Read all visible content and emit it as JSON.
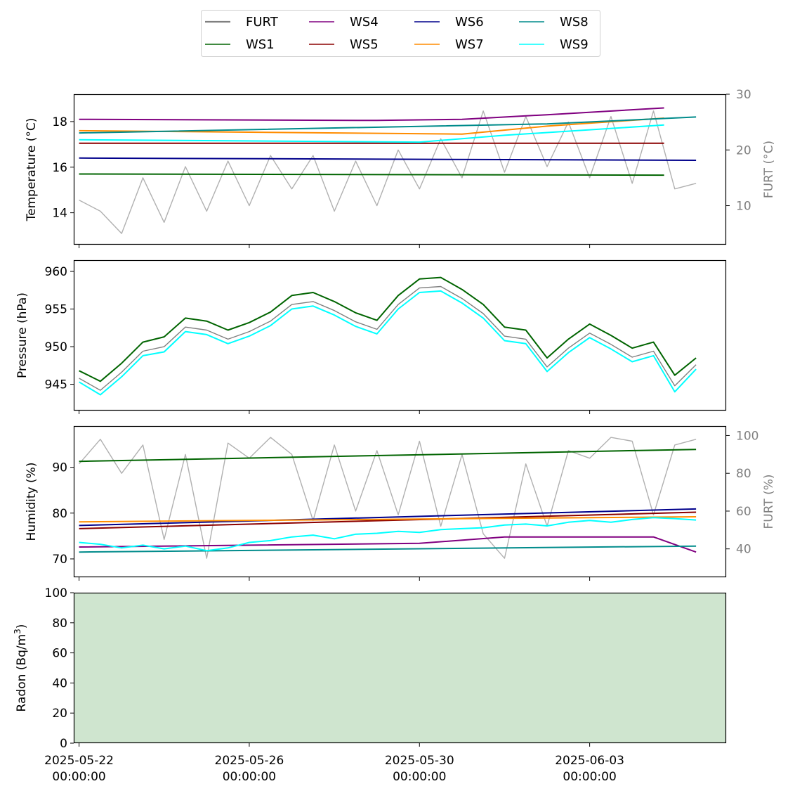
{
  "legend": {
    "entries": [
      {
        "name": "FURT",
        "color": "#808080"
      },
      {
        "name": "WS1",
        "color": "#006400"
      },
      {
        "name": "WS4",
        "color": "#800080"
      },
      {
        "name": "WS5",
        "color": "#8b0000"
      },
      {
        "name": "WS6",
        "color": "#00008b"
      },
      {
        "name": "WS7",
        "color": "#ff8c00"
      },
      {
        "name": "WS8",
        "color": "#008b8b"
      },
      {
        "name": "WS9",
        "color": "#00ffff"
      }
    ]
  },
  "x_axis": {
    "ticks": [
      {
        "date": "2025-05-22",
        "line1": "2025-05-22",
        "line2": "00:00:00"
      },
      {
        "date": "2025-05-26",
        "line1": "2025-05-26",
        "line2": "00:00:00"
      },
      {
        "date": "2025-05-30",
        "line1": "2025-05-30",
        "line2": "00:00:00"
      },
      {
        "date": "2025-06-03",
        "line1": "2025-06-03",
        "line2": "00:00:00"
      }
    ],
    "range": [
      "2025-05-21T21:00",
      "2025-06-06T05:00"
    ]
  },
  "chart_data": [
    {
      "type": "line",
      "ylabel": "Temperature (°C)",
      "ylim": [
        12.6,
        19.2
      ],
      "yticks": [
        14,
        16,
        18
      ],
      "secondary_axis": {
        "ylabel": "FURT (°C)",
        "ylim": [
          3,
          30
        ],
        "yticks": [
          10,
          20,
          30
        ]
      },
      "series": [
        {
          "name": "FURT",
          "axis": "right",
          "color": "#b0b0b0",
          "x": [
            "2025-05-22T00:00",
            "2025-05-22T12:00",
            "2025-05-23T00:00",
            "2025-05-23T12:00",
            "2025-05-24T00:00",
            "2025-05-24T12:00",
            "2025-05-25T00:00",
            "2025-05-25T12:00",
            "2025-05-26T00:00",
            "2025-05-26T12:00",
            "2025-05-27T00:00",
            "2025-05-27T12:00",
            "2025-05-28T00:00",
            "2025-05-28T12:00",
            "2025-05-29T00:00",
            "2025-05-29T12:00",
            "2025-05-30T00:00",
            "2025-05-30T12:00",
            "2025-05-31T00:00",
            "2025-05-31T12:00",
            "2025-06-01T00:00",
            "2025-06-01T12:00",
            "2025-06-02T00:00",
            "2025-06-02T12:00",
            "2025-06-03T00:00",
            "2025-06-03T12:00",
            "2025-06-04T00:00",
            "2025-06-04T12:00",
            "2025-06-05T00:00",
            "2025-06-05T12:00"
          ],
          "values": [
            11,
            9,
            5,
            15,
            7,
            17,
            9,
            18,
            10,
            19,
            13,
            19,
            9,
            18,
            10,
            20,
            13,
            22,
            15,
            27,
            16,
            26,
            17,
            25,
            15,
            26,
            14,
            27,
            13,
            14
          ]
        },
        {
          "name": "WS1",
          "axis": "left",
          "color": "#006400",
          "x": [
            "2025-05-22T00:00",
            "2025-06-04T18:00"
          ],
          "values": [
            15.7,
            15.65
          ]
        },
        {
          "name": "WS4",
          "axis": "left",
          "color": "#800080",
          "x": [
            "2025-05-22T00:00",
            "2025-05-29T00:00",
            "2025-05-31T00:00",
            "2025-06-02T00:00",
            "2025-06-04T18:00"
          ],
          "values": [
            18.1,
            18.05,
            18.1,
            18.3,
            18.6
          ]
        },
        {
          "name": "WS5",
          "axis": "left",
          "color": "#8b0000",
          "x": [
            "2025-05-22T00:00",
            "2025-06-04T18:00"
          ],
          "values": [
            17.05,
            17.05
          ]
        },
        {
          "name": "WS6",
          "axis": "left",
          "color": "#00008b",
          "x": [
            "2025-05-22T00:00",
            "2025-06-05T12:00"
          ],
          "values": [
            16.4,
            16.3
          ]
        },
        {
          "name": "WS7",
          "axis": "left",
          "color": "#ff8c00",
          "x": [
            "2025-05-22T00:00",
            "2025-05-31T00:00",
            "2025-06-02T00:00",
            "2025-06-04T18:00"
          ],
          "values": [
            17.6,
            17.45,
            17.8,
            18.15
          ]
        },
        {
          "name": "WS8",
          "axis": "left",
          "color": "#008b8b",
          "x": [
            "2025-05-22T00:00",
            "2025-06-02T00:00",
            "2025-06-05T12:00"
          ],
          "values": [
            17.5,
            17.9,
            18.2
          ]
        },
        {
          "name": "WS9",
          "axis": "left",
          "color": "#00ffff",
          "x": [
            "2025-05-22T00:00",
            "2025-05-30T00:00",
            "2025-06-01T00:00",
            "2025-06-04T18:00"
          ],
          "values": [
            17.2,
            17.1,
            17.4,
            17.85
          ]
        }
      ]
    },
    {
      "type": "line",
      "ylabel": "Pressure (hPa)",
      "ylim": [
        941.5,
        961.5
      ],
      "yticks": [
        945,
        950,
        955,
        960
      ],
      "series": [
        {
          "name": "WS1",
          "color": "#006400",
          "x": [
            "2025-05-22T00:00",
            "2025-05-22T12:00",
            "2025-05-23T00:00",
            "2025-05-23T12:00",
            "2025-05-24T00:00",
            "2025-05-24T12:00",
            "2025-05-25T00:00",
            "2025-05-25T12:00",
            "2025-05-26T00:00",
            "2025-05-26T12:00",
            "2025-05-27T00:00",
            "2025-05-27T12:00",
            "2025-05-28T00:00",
            "2025-05-28T12:00",
            "2025-05-29T00:00",
            "2025-05-29T12:00",
            "2025-05-30T00:00",
            "2025-05-30T12:00",
            "2025-05-31T00:00",
            "2025-05-31T12:00",
            "2025-06-01T00:00",
            "2025-06-01T12:00",
            "2025-06-02T00:00",
            "2025-06-02T12:00",
            "2025-06-03T00:00",
            "2025-06-03T12:00",
            "2025-06-04T00:00",
            "2025-06-04T12:00",
            "2025-06-05T00:00",
            "2025-06-05T12:00"
          ],
          "values": [
            946.8,
            945.4,
            947.8,
            950.6,
            951.3,
            953.8,
            953.4,
            952.2,
            953.2,
            954.6,
            956.8,
            957.2,
            956.0,
            954.5,
            953.5,
            956.8,
            959.0,
            959.2,
            957.6,
            955.6,
            952.6,
            952.2,
            948.5,
            951.0,
            953.0,
            951.5,
            949.8,
            950.6,
            946.2,
            948.5
          ]
        },
        {
          "name": "FURT",
          "color": "#808080",
          "x": [
            "2025-05-22T00:00",
            "2025-05-22T12:00",
            "2025-05-23T00:00",
            "2025-05-23T12:00",
            "2025-05-24T00:00",
            "2025-05-24T12:00",
            "2025-05-25T00:00",
            "2025-05-25T12:00",
            "2025-05-26T00:00",
            "2025-05-26T12:00",
            "2025-05-27T00:00",
            "2025-05-27T12:00",
            "2025-05-28T00:00",
            "2025-05-28T12:00",
            "2025-05-29T00:00",
            "2025-05-29T12:00",
            "2025-05-30T00:00",
            "2025-05-30T12:00",
            "2025-05-31T00:00",
            "2025-05-31T12:00",
            "2025-06-01T00:00",
            "2025-06-01T12:00",
            "2025-06-02T00:00",
            "2025-06-02T12:00",
            "2025-06-03T00:00",
            "2025-06-03T12:00",
            "2025-06-04T00:00",
            "2025-06-04T12:00",
            "2025-06-05T00:00",
            "2025-06-05T12:00"
          ],
          "values": [
            945.8,
            944.2,
            946.6,
            949.4,
            950.0,
            952.6,
            952.2,
            951.0,
            952.0,
            953.4,
            955.6,
            956.0,
            954.8,
            953.3,
            952.3,
            955.6,
            957.8,
            958.0,
            956.4,
            954.4,
            951.4,
            951.0,
            947.3,
            949.8,
            951.8,
            950.3,
            948.6,
            949.4,
            944.8,
            947.6
          ]
        },
        {
          "name": "WS9",
          "color": "#00ffff",
          "x": [
            "2025-05-22T00:00",
            "2025-05-22T12:00",
            "2025-05-23T00:00",
            "2025-05-23T12:00",
            "2025-05-24T00:00",
            "2025-05-24T12:00",
            "2025-05-25T00:00",
            "2025-05-25T12:00",
            "2025-05-26T00:00",
            "2025-05-26T12:00",
            "2025-05-27T00:00",
            "2025-05-27T12:00",
            "2025-05-28T00:00",
            "2025-05-28T12:00",
            "2025-05-29T00:00",
            "2025-05-29T12:00",
            "2025-05-30T00:00",
            "2025-05-30T12:00",
            "2025-05-31T00:00",
            "2025-05-31T12:00",
            "2025-06-01T00:00",
            "2025-06-01T12:00",
            "2025-06-02T00:00",
            "2025-06-02T12:00",
            "2025-06-03T00:00",
            "2025-06-03T12:00",
            "2025-06-04T00:00",
            "2025-06-04T12:00",
            "2025-06-05T00:00",
            "2025-06-05T12:00"
          ],
          "values": [
            945.3,
            943.6,
            946.0,
            948.8,
            949.3,
            952.0,
            951.6,
            950.4,
            951.4,
            952.8,
            955.0,
            955.4,
            954.2,
            952.7,
            951.7,
            955.0,
            957.2,
            957.4,
            955.8,
            953.8,
            950.8,
            950.4,
            946.7,
            949.2,
            951.2,
            949.7,
            948.0,
            948.8,
            944.0,
            947.0
          ]
        }
      ]
    },
    {
      "type": "line",
      "ylabel": "Humidity (%)",
      "ylim": [
        66,
        99
      ],
      "yticks": [
        70,
        80,
        90
      ],
      "secondary_axis": {
        "ylabel": "FURT (%)",
        "ylim": [
          25,
          105
        ],
        "yticks": [
          40,
          60,
          80,
          100
        ]
      },
      "series": [
        {
          "name": "FURT",
          "axis": "right",
          "color": "#b0b0b0",
          "x": [
            "2025-05-22T00:00",
            "2025-05-22T12:00",
            "2025-05-23T00:00",
            "2025-05-23T12:00",
            "2025-05-24T00:00",
            "2025-05-24T12:00",
            "2025-05-25T00:00",
            "2025-05-25T12:00",
            "2025-05-26T00:00",
            "2025-05-26T12:00",
            "2025-05-27T00:00",
            "2025-05-27T12:00",
            "2025-05-28T00:00",
            "2025-05-28T12:00",
            "2025-05-29T00:00",
            "2025-05-29T12:00",
            "2025-05-30T00:00",
            "2025-05-30T12:00",
            "2025-05-31T00:00",
            "2025-05-31T12:00",
            "2025-06-01T00:00",
            "2025-06-01T12:00",
            "2025-06-02T00:00",
            "2025-06-02T12:00",
            "2025-06-03T00:00",
            "2025-06-03T12:00",
            "2025-06-04T00:00",
            "2025-06-04T12:00",
            "2025-06-05T00:00",
            "2025-06-05T12:00"
          ],
          "values": [
            85,
            98,
            80,
            95,
            45,
            90,
            35,
            96,
            88,
            99,
            90,
            55,
            95,
            60,
            92,
            58,
            97,
            52,
            90,
            48,
            35,
            85,
            52,
            92,
            88,
            99,
            97,
            58,
            95,
            98
          ]
        },
        {
          "name": "WS1",
          "axis": "left",
          "color": "#006400",
          "x": [
            "2025-05-22T00:00",
            "2025-06-05T12:00"
          ],
          "values": [
            91.3,
            93.9
          ]
        },
        {
          "name": "WS4",
          "axis": "left",
          "color": "#800080",
          "x": [
            "2025-05-22T00:00",
            "2025-05-30T00:00",
            "2025-06-01T00:00",
            "2025-06-04T12:00",
            "2025-06-05T12:00"
          ],
          "values": [
            72.6,
            73.4,
            74.8,
            74.8,
            71.5
          ]
        },
        {
          "name": "WS5",
          "axis": "left",
          "color": "#8b0000",
          "x": [
            "2025-05-22T00:00",
            "2025-06-05T12:00"
          ],
          "values": [
            76.6,
            80.2
          ]
        },
        {
          "name": "WS6",
          "axis": "left",
          "color": "#00008b",
          "x": [
            "2025-05-22T00:00",
            "2025-06-05T12:00"
          ],
          "values": [
            77.3,
            80.9
          ]
        },
        {
          "name": "WS7",
          "axis": "left",
          "color": "#ff8c00",
          "x": [
            "2025-05-22T00:00",
            "2025-06-05T12:00"
          ],
          "values": [
            78.1,
            79.2
          ]
        },
        {
          "name": "WS8",
          "axis": "left",
          "color": "#008b8b",
          "x": [
            "2025-05-22T00:00",
            "2025-06-05T12:00"
          ],
          "values": [
            71.5,
            72.8
          ]
        },
        {
          "name": "WS9",
          "axis": "left",
          "color": "#00ffff",
          "x": [
            "2025-05-22T00:00",
            "2025-05-22T12:00",
            "2025-05-23T00:00",
            "2025-05-23T12:00",
            "2025-05-24T00:00",
            "2025-05-24T12:00",
            "2025-05-25T00:00",
            "2025-05-25T12:00",
            "2025-05-26T00:00",
            "2025-05-26T12:00",
            "2025-05-27T00:00",
            "2025-05-27T12:00",
            "2025-05-28T00:00",
            "2025-05-28T12:00",
            "2025-05-29T00:00",
            "2025-05-29T12:00",
            "2025-05-30T00:00",
            "2025-05-30T12:00",
            "2025-05-31T00:00",
            "2025-05-31T12:00",
            "2025-06-01T00:00",
            "2025-06-01T12:00",
            "2025-06-02T00:00",
            "2025-06-02T12:00",
            "2025-06-03T00:00",
            "2025-06-03T12:00",
            "2025-06-04T00:00",
            "2025-06-04T12:00",
            "2025-06-05T00:00",
            "2025-06-05T12:00"
          ],
          "values": [
            73.6,
            73.2,
            72.4,
            73.0,
            72.2,
            72.8,
            71.8,
            72.4,
            73.6,
            74.0,
            74.8,
            75.2,
            74.4,
            75.4,
            75.6,
            76.0,
            75.8,
            76.4,
            76.6,
            76.8,
            77.4,
            77.6,
            77.2,
            78.0,
            78.4,
            78.0,
            78.6,
            79.0,
            78.8,
            78.5
          ]
        }
      ]
    },
    {
      "type": "area",
      "ylabel": "Radon (Bq/m³)",
      "ylabel_main": "Radon (Bq/m",
      "ylabel_sup": "3",
      "ylabel_end": ")",
      "ylim": [
        0,
        100
      ],
      "yticks": [
        0,
        20,
        40,
        60,
        80,
        100
      ],
      "bands": [
        {
          "from": 0,
          "to": 100,
          "color": "#cfe5cf"
        }
      ]
    }
  ]
}
